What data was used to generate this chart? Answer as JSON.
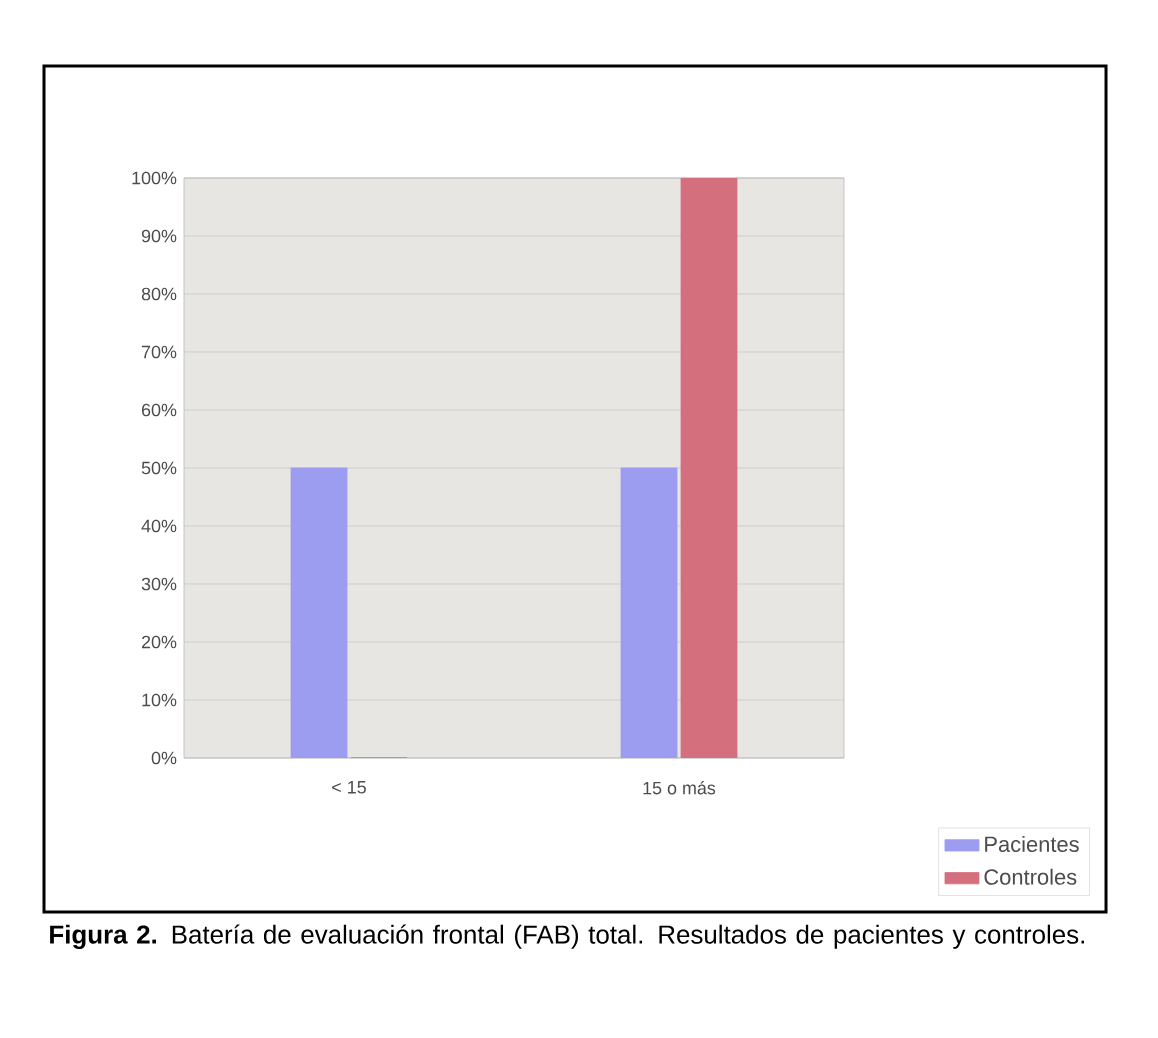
{
  "chart_data": {
    "type": "bar",
    "categories": [
      "< 15",
      "15 o más"
    ],
    "series": [
      {
        "name": "Pacientes",
        "color": "#9c9cf0",
        "values": [
          50,
          50
        ]
      },
      {
        "name": "Controles",
        "color": "#d4707e",
        "values": [
          0,
          100
        ]
      }
    ],
    "ylim": [
      0,
      100
    ],
    "yticks": [
      {
        "value": 0,
        "label": "0%"
      },
      {
        "value": 10,
        "label": "10%"
      },
      {
        "value": 20,
        "label": "20%"
      },
      {
        "value": 30,
        "label": "30%"
      },
      {
        "value": 40,
        "label": "40%"
      },
      {
        "value": 50,
        "label": "50%"
      },
      {
        "value": 60,
        "label": "60%"
      },
      {
        "value": 70,
        "label": "70%"
      },
      {
        "value": 80,
        "label": "80%"
      },
      {
        "value": 90,
        "label": "90%"
      },
      {
        "value": 100,
        "label": "100%"
      }
    ],
    "grid": "y",
    "legend": "bottom right",
    "annotations": [
      "**Figura 2.** Batería de evaluación frontal (FAB) total. Resultados de pacientes y controles."
    ]
  }
}
